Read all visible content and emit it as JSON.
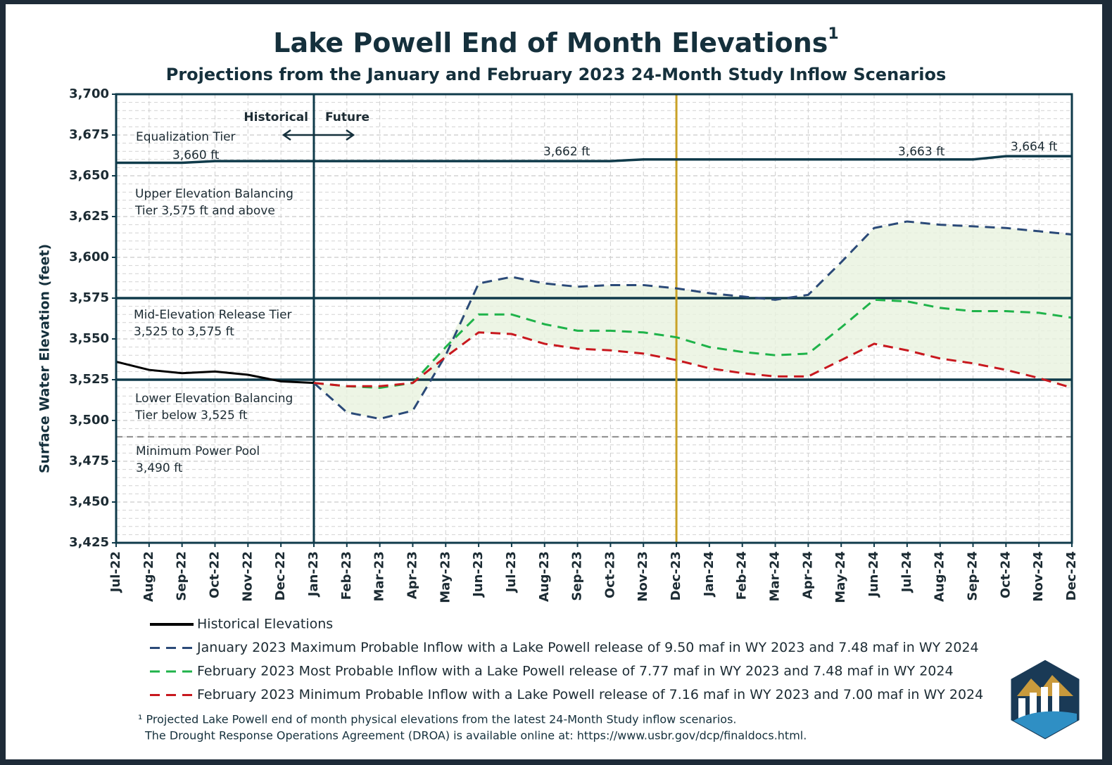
{
  "chart_data": {
    "type": "line",
    "title": "Lake Powell End of Month Elevations",
    "title_note": "1",
    "subtitle": "Projections from the January and February 2023 24-Month Study Inflow Scenarios",
    "y_label": "Surface Water Elevation (feet)",
    "categories": [
      "Jul-22",
      "Aug-22",
      "Sep-22",
      "Oct-22",
      "Nov-22",
      "Dec-22",
      "Jan-23",
      "Feb-23",
      "Mar-23",
      "Apr-23",
      "May-23",
      "Jun-23",
      "Jul-23",
      "Aug-23",
      "Sep-23",
      "Oct-23",
      "Nov-23",
      "Dec-23",
      "Jan-24",
      "Feb-24",
      "Mar-24",
      "Apr-24",
      "May-24",
      "Jun-24",
      "Jul-24",
      "Aug-24",
      "Sep-24",
      "Oct-24",
      "Nov-24",
      "Dec-24"
    ],
    "ylim": [
      3425,
      3700
    ],
    "yticks": [
      {
        "value": 3425,
        "label": "3,425"
      },
      {
        "value": 3450,
        "label": "3,450"
      },
      {
        "value": 3475,
        "label": "3,475"
      },
      {
        "value": 3500,
        "label": "3,500"
      },
      {
        "value": 3525,
        "label": "3,525"
      },
      {
        "value": 3550,
        "label": "3,550"
      },
      {
        "value": 3575,
        "label": "3,575"
      },
      {
        "value": 3600,
        "label": "3,600"
      },
      {
        "value": 3625,
        "label": "3,625"
      },
      {
        "value": 3650,
        "label": "3,650"
      },
      {
        "value": 3675,
        "label": "3,675"
      },
      {
        "value": 3700,
        "label": "3,700"
      }
    ],
    "grid": true,
    "series": [
      {
        "name": "Historical Elevations",
        "color": "#000000",
        "dashed": false,
        "values": [
          3536,
          3531,
          3529,
          3530,
          3528,
          3524,
          3523,
          null,
          null,
          null,
          null,
          null,
          null,
          null,
          null,
          null,
          null,
          null,
          null,
          null,
          null,
          null,
          null,
          null,
          null,
          null,
          null,
          null,
          null,
          null
        ]
      },
      {
        "name": "January 2023 Maximum Probable Inflow with a Lake Powell release of 9.50 maf in WY 2023 and 7.48 maf in WY 2024",
        "color": "#2b4a78",
        "dashed": true,
        "values": [
          null,
          null,
          null,
          null,
          null,
          null,
          3523,
          3505,
          3501,
          3506,
          3540,
          3584,
          3588,
          3584,
          3582,
          3583,
          3583,
          3581,
          3578,
          3576,
          3574,
          3577,
          3597,
          3618,
          3622,
          3620,
          3619,
          3618,
          3616,
          3614
        ]
      },
      {
        "name": "February 2023 Most Probable Inflow with a Lake Powell release of 7.77 maf in WY 2023 and 7.48 maf in WY 2024",
        "color": "#1fb34a",
        "dashed": true,
        "values": [
          null,
          null,
          null,
          null,
          null,
          null,
          3523,
          3521,
          3520,
          3523,
          3545,
          3565,
          3565,
          3559,
          3555,
          3555,
          3554,
          3551,
          3545,
          3542,
          3540,
          3541,
          3557,
          3574,
          3573,
          3569,
          3567,
          3567,
          3566,
          3563
        ]
      },
      {
        "name": "February 2023 Minimum Probable Inflow with a Lake Powell release of 7.16 maf in WY 2023 and 7.00 maf in WY 2024",
        "color": "#c8181e",
        "dashed": true,
        "values": [
          null,
          null,
          null,
          null,
          null,
          null,
          3523,
          3521,
          3521,
          3523,
          3539,
          3554,
          3553,
          3547,
          3544,
          3543,
          3541,
          3537,
          3532,
          3529,
          3527,
          3527,
          3537,
          3547,
          3543,
          3538,
          3535,
          3531,
          3526,
          3520
        ]
      }
    ],
    "equalization_line": {
      "color": "#0f3a4a",
      "values": [
        3658,
        3658,
        3658,
        3659,
        3659,
        3659,
        3659,
        3659,
        3659,
        3659,
        3659,
        3659,
        3659,
        3659,
        3659,
        3659,
        3660,
        3660,
        3660,
        3660,
        3660,
        3660,
        3660,
        3660,
        3660,
        3660,
        3660,
        3662,
        3662,
        3662
      ]
    },
    "reference_lines": [
      {
        "value": 3575,
        "color": "#0f3a4a",
        "dashed": false
      },
      {
        "value": 3525,
        "color": "#0f3a4a",
        "dashed": false
      },
      {
        "value": 3490,
        "color": "#8a8a8a",
        "dashed": true
      }
    ],
    "vertical_lines": [
      {
        "at": "Jan-23",
        "color": "#0f3a4a"
      },
      {
        "at": "Dec-23",
        "color": "#c9a227"
      }
    ],
    "annotations": [
      "Equalization Tier",
      "3,660 ft",
      "3,662 ft",
      "3,663 ft",
      "3,664 ft",
      "Upper Elevation Balancing",
      "Tier 3,575 ft and above",
      "Mid-Elevation Release Tier",
      "3,525 to 3,575 ft",
      "Lower Elevation Balancing",
      "Tier below 3,525 ft",
      "Minimum Power Pool",
      "3,490 ft",
      "Historical",
      "Future"
    ],
    "footnote": [
      "¹ Projected Lake Powell end of month physical elevations from the latest 24-Month Study inflow scenarios.",
      "The Drought Response Operations Agreement (DROA) is available online at: https://www.usbr.gov/dcp/finaldocs.html."
    ]
  }
}
